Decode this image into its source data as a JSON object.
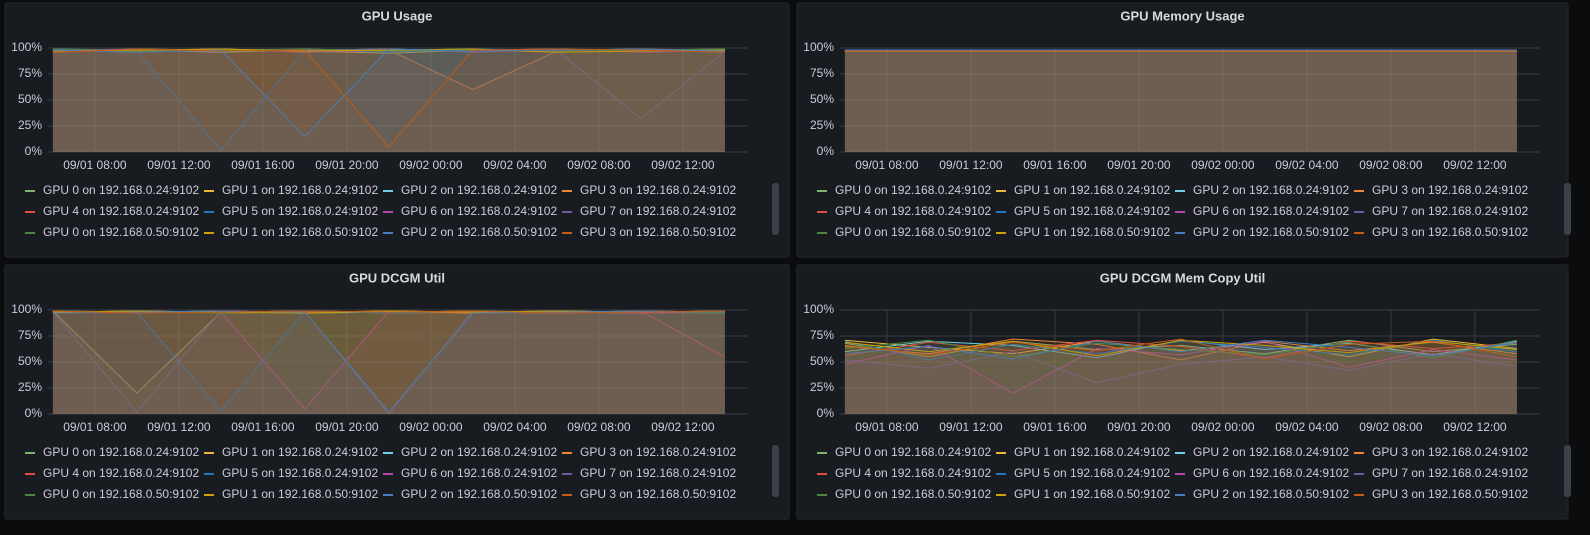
{
  "chart_data": [
    {
      "type": "line",
      "title": "GPU Usage",
      "x": [
        "09/01 06:00",
        "09/01 10:00",
        "09/01 14:00",
        "09/01 18:00",
        "09/01 22:00",
        "09/02 02:00",
        "09/02 06:00",
        "09/02 10:00",
        "09/02 14:00"
      ],
      "xlim": [
        "09/01 05:46",
        "09/02 15:06"
      ],
      "xticks": [
        "09/01 08:00",
        "09/01 12:00",
        "09/01 16:00",
        "09/01 20:00",
        "09/02 00:00",
        "09/02 04:00",
        "09/02 08:00",
        "09/02 12:00"
      ],
      "ylim": [
        0,
        100
      ],
      "yticks": [
        {
          "value": 0,
          "label": "0%"
        },
        {
          "value": 25,
          "label": "25%"
        },
        {
          "value": 50,
          "label": "50%"
        },
        {
          "value": 75,
          "label": "75%"
        },
        {
          "value": 100,
          "label": "100%"
        }
      ],
      "series": [
        {
          "name": "GPU 0 on 192.168.0.24:9102",
          "color": "#7eb26d",
          "values": [
            98,
            97,
            99,
            96,
            98,
            99,
            97,
            98,
            97
          ]
        },
        {
          "name": "GPU 1 on 192.168.0.24:9102",
          "color": "#eab839",
          "values": [
            97,
            99,
            98,
            97,
            95,
            98,
            99,
            97,
            98
          ]
        },
        {
          "name": "GPU 2 on 192.168.0.24:9102",
          "color": "#6ed0e0",
          "values": [
            99,
            98,
            96,
            98,
            99,
            97,
            98,
            99,
            96
          ]
        },
        {
          "name": "GPU 3 on 192.168.0.24:9102",
          "color": "#ef843c",
          "values": [
            98,
            96,
            99,
            97,
            98,
            60,
            97,
            98,
            99
          ]
        },
        {
          "name": "GPU 4 on 192.168.0.24:9102",
          "color": "#e24d42",
          "values": [
            96,
            98,
            97,
            99,
            97,
            98,
            96,
            99,
            98
          ]
        },
        {
          "name": "GPU 5 on 192.168.0.24:9102",
          "color": "#1f78c1",
          "values": [
            99,
            97,
            2,
            98,
            96,
            99,
            98,
            97,
            99
          ]
        },
        {
          "name": "GPU 6 on 192.168.0.24:9102",
          "color": "#ba43a9",
          "values": [
            97,
            98,
            99,
            96,
            98,
            97,
            99,
            96,
            98
          ]
        },
        {
          "name": "GPU 7 on 192.168.0.24:9102",
          "color": "#705da0",
          "values": [
            98,
            99,
            97,
            98,
            99,
            96,
            98,
            32,
            97
          ]
        },
        {
          "name": "GPU 0 on 192.168.0.50:9102",
          "color": "#508642",
          "values": [
            99,
            97,
            98,
            99,
            97,
            98,
            97,
            98,
            99
          ]
        },
        {
          "name": "GPU 1 on 192.168.0.50:9102",
          "color": "#cca300",
          "values": [
            97,
            98,
            99,
            97,
            98,
            99,
            96,
            97,
            98
          ]
        },
        {
          "name": "GPU 2 on 192.168.0.50:9102",
          "color": "#447ebc",
          "values": [
            98,
            96,
            98,
            15,
            99,
            97,
            98,
            99,
            97
          ]
        },
        {
          "name": "GPU 3 on 192.168.0.50:9102",
          "color": "#c15c17",
          "values": [
            96,
            99,
            97,
            98,
            5,
            98,
            99,
            98,
            96
          ]
        }
      ]
    },
    {
      "type": "line",
      "title": "GPU Memory Usage",
      "x": [
        "09/01 06:00",
        "09/01 10:00",
        "09/01 14:00",
        "09/01 18:00",
        "09/01 22:00",
        "09/02 02:00",
        "09/02 06:00",
        "09/02 10:00",
        "09/02 14:00"
      ],
      "xlim": [
        "09/01 05:46",
        "09/02 15:06"
      ],
      "xticks": [
        "09/01 08:00",
        "09/01 12:00",
        "09/01 16:00",
        "09/01 20:00",
        "09/02 00:00",
        "09/02 04:00",
        "09/02 08:00",
        "09/02 12:00"
      ],
      "ylim": [
        0,
        100
      ],
      "yticks": [
        {
          "value": 0,
          "label": "0%"
        },
        {
          "value": 25,
          "label": "25%"
        },
        {
          "value": 50,
          "label": "50%"
        },
        {
          "value": 75,
          "label": "75%"
        },
        {
          "value": 100,
          "label": "100%"
        }
      ],
      "series": [
        {
          "name": "GPU 0 on 192.168.0.24:9102",
          "color": "#7eb26d",
          "values": [
            97,
            97,
            97,
            97,
            97,
            97,
            97,
            97,
            97
          ]
        },
        {
          "name": "GPU 1 on 192.168.0.24:9102",
          "color": "#eab839",
          "values": [
            97,
            97,
            97,
            97,
            97,
            97,
            97,
            97,
            97
          ]
        },
        {
          "name": "GPU 2 on 192.168.0.24:9102",
          "color": "#6ed0e0",
          "values": [
            97,
            97,
            97,
            97,
            97,
            97,
            97,
            97,
            97
          ]
        },
        {
          "name": "GPU 3 on 192.168.0.24:9102",
          "color": "#ef843c",
          "values": [
            97,
            97,
            97,
            97,
            97,
            97,
            97,
            97,
            97
          ]
        },
        {
          "name": "GPU 4 on 192.168.0.24:9102",
          "color": "#e24d42",
          "values": [
            97,
            97,
            97,
            97,
            97,
            97,
            97,
            97,
            97
          ]
        },
        {
          "name": "GPU 5 on 192.168.0.24:9102",
          "color": "#1f78c1",
          "values": [
            98,
            98,
            98,
            98,
            98,
            98,
            98,
            98,
            98
          ]
        },
        {
          "name": "GPU 6 on 192.168.0.24:9102",
          "color": "#ba43a9",
          "values": [
            97,
            97,
            97,
            97,
            97,
            97,
            97,
            97,
            97
          ]
        },
        {
          "name": "GPU 7 on 192.168.0.24:9102",
          "color": "#705da0",
          "values": [
            98,
            98,
            98,
            98,
            98,
            98,
            98,
            98,
            98
          ]
        },
        {
          "name": "GPU 0 on 192.168.0.50:9102",
          "color": "#508642",
          "values": [
            97,
            97,
            97,
            97,
            97,
            97,
            97,
            97,
            97
          ]
        },
        {
          "name": "GPU 1 on 192.168.0.50:9102",
          "color": "#cca300",
          "values": [
            97,
            97,
            97,
            97,
            97,
            97,
            97,
            97,
            97
          ]
        },
        {
          "name": "GPU 2 on 192.168.0.50:9102",
          "color": "#447ebc",
          "values": [
            98,
            98,
            98,
            98,
            98,
            98,
            98,
            98,
            98
          ]
        },
        {
          "name": "GPU 3 on 192.168.0.50:9102",
          "color": "#c15c17",
          "values": [
            97,
            97,
            97,
            97,
            97,
            97,
            97,
            97,
            97
          ]
        }
      ]
    },
    {
      "type": "line",
      "title": "GPU DCGM Util",
      "x": [
        "09/01 06:00",
        "09/01 10:00",
        "09/01 14:00",
        "09/01 18:00",
        "09/01 22:00",
        "09/02 02:00",
        "09/02 06:00",
        "09/02 10:00",
        "09/02 14:00"
      ],
      "xlim": [
        "09/01 05:46",
        "09/02 15:06"
      ],
      "xticks": [
        "09/01 08:00",
        "09/01 12:00",
        "09/01 16:00",
        "09/01 20:00",
        "09/02 00:00",
        "09/02 04:00",
        "09/02 08:00",
        "09/02 12:00"
      ],
      "ylim": [
        0,
        100
      ],
      "yticks": [
        {
          "value": 0,
          "label": "0%"
        },
        {
          "value": 25,
          "label": "25%"
        },
        {
          "value": 50,
          "label": "50%"
        },
        {
          "value": 75,
          "label": "75%"
        },
        {
          "value": 100,
          "label": "100%"
        }
      ],
      "series": [
        {
          "name": "GPU 0 on 192.168.0.24:9102",
          "color": "#7eb26d",
          "values": [
            99,
            20,
            98,
            99,
            97,
            98,
            99,
            98,
            99
          ]
        },
        {
          "name": "GPU 1 on 192.168.0.24:9102",
          "color": "#eab839",
          "values": [
            98,
            99,
            97,
            98,
            99,
            98,
            97,
            99,
            98
          ]
        },
        {
          "name": "GPU 2 on 192.168.0.24:9102",
          "color": "#6ed0e0",
          "values": [
            99,
            98,
            99,
            97,
            98,
            99,
            98,
            97,
            99
          ]
        },
        {
          "name": "GPU 3 on 192.168.0.24:9102",
          "color": "#ef843c",
          "values": [
            97,
            99,
            98,
            99,
            98,
            97,
            99,
            98,
            97
          ]
        },
        {
          "name": "GPU 4 on 192.168.0.24:9102",
          "color": "#e24d42",
          "values": [
            98,
            97,
            99,
            98,
            99,
            98,
            98,
            99,
            55
          ]
        },
        {
          "name": "GPU 5 on 192.168.0.24:9102",
          "color": "#1f78c1",
          "values": [
            99,
            98,
            3,
            99,
            97,
            99,
            98,
            98,
            99
          ]
        },
        {
          "name": "GPU 6 on 192.168.0.24:9102",
          "color": "#ba43a9",
          "values": [
            97,
            99,
            98,
            5,
            99,
            98,
            99,
            97,
            98
          ]
        },
        {
          "name": "GPU 7 on 192.168.0.24:9102",
          "color": "#705da0",
          "values": [
            98,
            2,
            99,
            98,
            0,
            99,
            97,
            98,
            99
          ]
        },
        {
          "name": "GPU 0 on 192.168.0.50:9102",
          "color": "#508642",
          "values": [
            99,
            98,
            97,
            99,
            98,
            99,
            98,
            99,
            97
          ]
        },
        {
          "name": "GPU 1 on 192.168.0.50:9102",
          "color": "#cca300",
          "values": [
            98,
            99,
            98,
            97,
            99,
            98,
            99,
            98,
            99
          ]
        },
        {
          "name": "GPU 2 on 192.168.0.50:9102",
          "color": "#447ebc",
          "values": [
            97,
            98,
            99,
            98,
            2,
            97,
            98,
            99,
            98
          ]
        },
        {
          "name": "GPU 3 on 192.168.0.50:9102",
          "color": "#c15c17",
          "values": [
            99,
            97,
            98,
            99,
            98,
            99,
            97,
            98,
            99
          ]
        }
      ]
    },
    {
      "type": "line",
      "title": "GPU DCGM Mem Copy Util",
      "x": [
        "09/01 06:00",
        "09/01 10:00",
        "09/01 14:00",
        "09/01 18:00",
        "09/01 22:00",
        "09/02 02:00",
        "09/02 06:00",
        "09/02 10:00",
        "09/02 14:00"
      ],
      "xlim": [
        "09/01 05:46",
        "09/02 15:06"
      ],
      "xticks": [
        "09/01 08:00",
        "09/01 12:00",
        "09/01 16:00",
        "09/01 20:00",
        "09/02 00:00",
        "09/02 04:00",
        "09/02 08:00",
        "09/02 12:00"
      ],
      "ylim": [
        0,
        100
      ],
      "yticks": [
        {
          "value": 0,
          "label": "0%"
        },
        {
          "value": 25,
          "label": "25%"
        },
        {
          "value": 50,
          "label": "50%"
        },
        {
          "value": 75,
          "label": "75%"
        },
        {
          "value": 100,
          "label": "100%"
        }
      ],
      "series": [
        {
          "name": "GPU 0 on 192.168.0.24:9102",
          "color": "#7eb26d",
          "values": [
            68,
            55,
            70,
            62,
            66,
            58,
            71,
            60,
            67
          ]
        },
        {
          "name": "GPU 1 on 192.168.0.24:9102",
          "color": "#eab839",
          "values": [
            71,
            64,
            58,
            70,
            61,
            69,
            55,
            72,
            63
          ]
        },
        {
          "name": "GPU 2 on 192.168.0.24:9102",
          "color": "#6ed0e0",
          "values": [
            60,
            70,
            66,
            54,
            71,
            62,
            68,
            57,
            70
          ]
        },
        {
          "name": "GPU 3 on 192.168.0.24:9102",
          "color": "#ef843c",
          "values": [
            65,
            58,
            72,
            67,
            52,
            70,
            61,
            69,
            58
          ]
        },
        {
          "name": "GPU 4 on 192.168.0.24:9102",
          "color": "#e24d42",
          "values": [
            56,
            69,
            61,
            71,
            65,
            54,
            70,
            63,
            68
          ]
        },
        {
          "name": "GPU 5 on 192.168.0.24:9102",
          "color": "#1f78c1",
          "values": [
            70,
            52,
            67,
            58,
            70,
            64,
            57,
            71,
            60
          ]
        },
        {
          "name": "GPU 6 on 192.168.0.24:9102",
          "color": "#ba43a9",
          "values": [
            48,
            66,
            20,
            63,
            57,
            70,
            45,
            62,
            52
          ]
        },
        {
          "name": "GPU 7 on 192.168.0.24:9102",
          "color": "#705da0",
          "values": [
            52,
            44,
            60,
            30,
            48,
            55,
            42,
            58,
            46
          ]
        },
        {
          "name": "GPU 0 on 192.168.0.50:9102",
          "color": "#508642",
          "values": [
            63,
            71,
            55,
            68,
            62,
            57,
            69,
            54,
            71
          ]
        },
        {
          "name": "GPU 1 on 192.168.0.50:9102",
          "color": "#cca300",
          "values": [
            69,
            60,
            70,
            56,
            71,
            66,
            59,
            70,
            62
          ]
        },
        {
          "name": "GPU 2 on 192.168.0.50:9102",
          "color": "#447ebc",
          "values": [
            58,
            65,
            53,
            70,
            60,
            71,
            64,
            56,
            69
          ]
        },
        {
          "name": "GPU 3 on 192.168.0.50:9102",
          "color": "#c15c17",
          "values": [
            66,
            57,
            69,
            61,
            72,
            53,
            67,
            70,
            55
          ]
        }
      ]
    }
  ]
}
